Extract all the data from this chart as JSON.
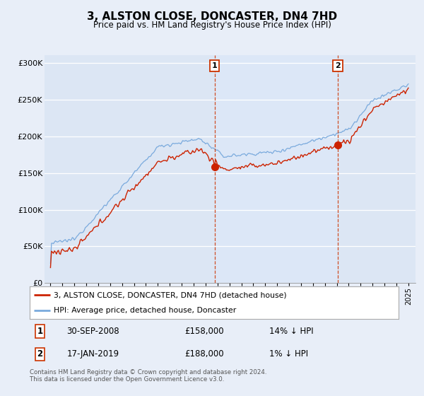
{
  "title": "3, ALSTON CLOSE, DONCASTER, DN4 7HD",
  "subtitle": "Price paid vs. HM Land Registry's House Price Index (HPI)",
  "ylim": [
    0,
    310000
  ],
  "yticks": [
    0,
    50000,
    100000,
    150000,
    200000,
    250000,
    300000
  ],
  "ytick_labels": [
    "£0",
    "£50K",
    "£100K",
    "£150K",
    "£200K",
    "£250K",
    "£300K"
  ],
  "bg_color": "#e8eef8",
  "plot_bg_color": "#dce6f4",
  "shade_color": "#d0dcf0",
  "hpi_color": "#7aaadd",
  "price_color": "#cc2200",
  "dashed_color": "#cc3300",
  "marker1_price": 158000,
  "marker1_date": "30-SEP-2008",
  "marker1_pct": "14% ↓ HPI",
  "marker2_price": 188000,
  "marker2_date": "17-JAN-2019",
  "marker2_pct": "1% ↓ HPI",
  "legend_line1": "3, ALSTON CLOSE, DONCASTER, DN4 7HD (detached house)",
  "legend_line2": "HPI: Average price, detached house, Doncaster",
  "footnote": "Contains HM Land Registry data © Crown copyright and database right 2024.\nThis data is licensed under the Open Government Licence v3.0.",
  "xstart_year": 1995,
  "xend_year": 2025
}
